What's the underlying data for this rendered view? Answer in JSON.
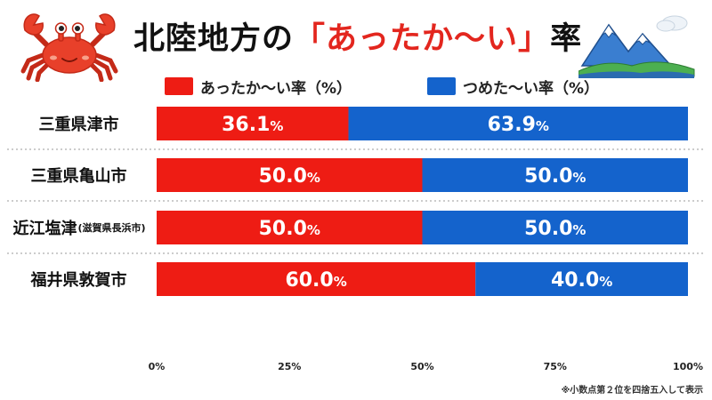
{
  "title": {
    "prefix": "北陸地方の",
    "open_bracket": "「",
    "highlight": "あったか〜い",
    "close_bracket": "」",
    "suffix": "率"
  },
  "legend": {
    "warm_label": "あったか〜い率（%）",
    "cold_label": "つめた〜い率（%）"
  },
  "colors": {
    "warm": "#ee1c14",
    "cold": "#1463cc",
    "title_accent": "#e3261e"
  },
  "rows": [
    {
      "label": "三重県津市",
      "sub": ""
    },
    {
      "label": "三重県亀山市",
      "sub": ""
    },
    {
      "label": "近江塩津",
      "sub": "(滋賀県長浜市)"
    },
    {
      "label": "福井県敦賀市",
      "sub": ""
    }
  ],
  "footnote": "※小数点第２位を四捨五入して表示",
  "chart_data": {
    "type": "bar",
    "orientation": "horizontal",
    "stacked": true,
    "categories": [
      "三重県津市",
      "三重県亀山市",
      "近江塩津(滋賀県長浜市)",
      "福井県敦賀市"
    ],
    "series": [
      {
        "name": "あったか〜い率（%）",
        "values": [
          36.1,
          50.0,
          50.0,
          60.0
        ],
        "labels": [
          "36.1",
          "50.0",
          "50.0",
          "60.0"
        ]
      },
      {
        "name": "つめた〜い率（%）",
        "values": [
          63.9,
          50.0,
          50.0,
          40.0
        ],
        "labels": [
          "63.9",
          "50.0",
          "50.0",
          "40.0"
        ]
      }
    ],
    "x_ticks": [
      "0%",
      "25%",
      "50%",
      "75%",
      "100%"
    ],
    "xlim": [
      0,
      100
    ],
    "data_label_suffix": "%",
    "legend_position": "top",
    "grid": false
  }
}
